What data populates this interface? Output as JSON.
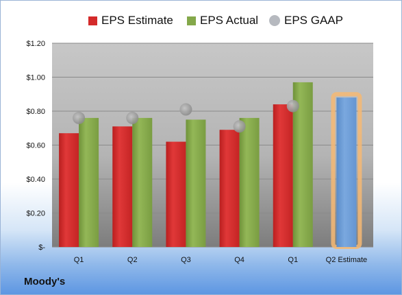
{
  "chart_data": {
    "type": "bar",
    "title": "",
    "xlabel": "",
    "ylabel": "",
    "categories": [
      "Q1",
      "Q2",
      "Q3",
      "Q4",
      "Q1",
      "Q2 Estimate"
    ],
    "series": [
      {
        "name": "EPS Estimate",
        "kind": "bar",
        "color": "#d42a2a",
        "values": [
          0.67,
          0.71,
          0.62,
          0.69,
          0.84,
          null
        ]
      },
      {
        "name": "EPS Actual",
        "kind": "bar",
        "color": "#84a84a",
        "values": [
          0.76,
          0.76,
          0.75,
          0.76,
          0.97,
          0.88
        ]
      },
      {
        "name": "EPS GAAP",
        "kind": "marker",
        "color": "#a8a8a8",
        "values": [
          0.76,
          0.76,
          0.81,
          0.71,
          0.83,
          null
        ]
      }
    ],
    "highlight": {
      "category_index": 5,
      "bar_color": "#6d9dd6",
      "glow_color": "#f6b873"
    },
    "yticks": [
      "$-",
      "$0.20",
      "$0.40",
      "$0.60",
      "$0.80",
      "$1.00",
      "$1.20"
    ],
    "ylim": [
      0,
      1.2
    ],
    "grid": true,
    "legend_position": "top"
  },
  "brand": "Moody's"
}
